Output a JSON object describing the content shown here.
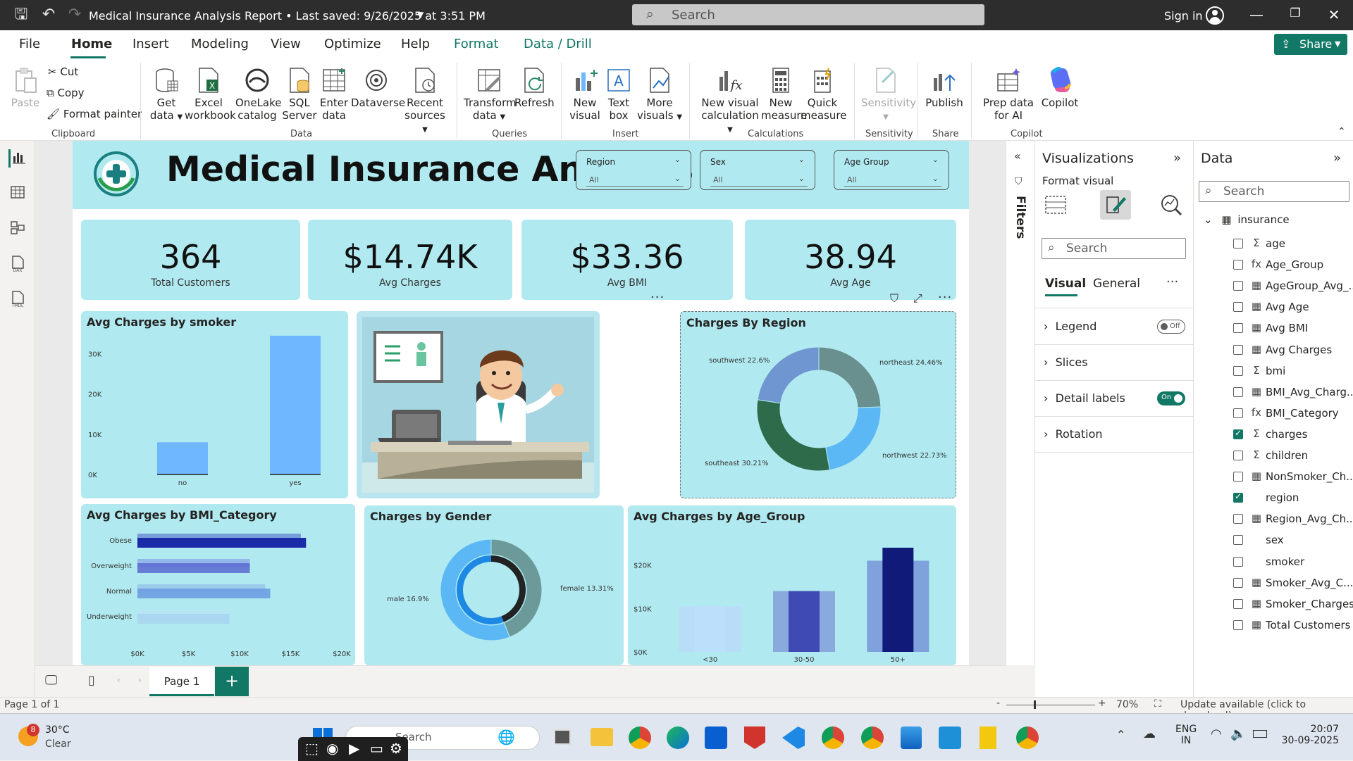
{
  "window": {
    "title": "Medical Insurance Analysis Report • Last saved: 9/26/2025 at 3:51 PM",
    "search_placeholder": "Search",
    "sign_in": "Sign in"
  },
  "menu": {
    "tabs": [
      "File",
      "Home",
      "Insert",
      "Modeling",
      "View",
      "Optimize",
      "Help",
      "Format",
      "Data / Drill"
    ],
    "share": "Share"
  },
  "ribbon": {
    "clipboard": {
      "paste": "Paste",
      "cut": "Cut",
      "copy": "Copy",
      "format_painter": "Format painter",
      "label": "Clipboard"
    },
    "data": {
      "get_data": "Get data",
      "excel": "Excel workbook",
      "onelake": "OneLake catalog",
      "sql": "SQL Server",
      "enter": "Enter data",
      "dataverse": "Dataverse",
      "recent": "Recent sources",
      "label": "Data"
    },
    "queries": {
      "transform": "Transform data",
      "refresh": "Refresh",
      "label": "Queries"
    },
    "insert": {
      "new_visual": "New visual",
      "text_box": "Text box",
      "more_visuals": "More visuals",
      "label": "Insert"
    },
    "calculations": {
      "new_visual_calc": "New visual calculation",
      "new_measure": "New measure",
      "quick_measure": "Quick measure",
      "label": "Calculations"
    },
    "sensitivity": {
      "btn": "Sensitivity",
      "label": "Sensitivity"
    },
    "share": {
      "publish": "Publish",
      "label": "Share"
    },
    "copilot": {
      "prep": "Prep data for AI",
      "copilot": "Copilot",
      "label": "Copilot"
    }
  },
  "report": {
    "title": "Medical Insurance Analysis",
    "slicers": [
      {
        "header": "Region",
        "value": "All"
      },
      {
        "header": "Sex",
        "value": "All"
      },
      {
        "header": "Age Group",
        "value": "All"
      }
    ],
    "kpis": [
      {
        "value": "364",
        "label": "Total Customers"
      },
      {
        "value": "$14.74K",
        "label": "Avg Charges"
      },
      {
        "value": "$33.36",
        "label": "Avg BMI"
      },
      {
        "value": "38.94",
        "label": "Avg Age"
      }
    ],
    "card_titles": {
      "smoker": "Avg Charges by smoker",
      "region": "Charges By Region",
      "bmi": "Avg Charges by BMI_Category",
      "gender": "Charges by Gender",
      "age": "Avg Charges by Age_Group"
    }
  },
  "chart_data": [
    {
      "type": "bar",
      "title": "Avg Charges by smoker",
      "categories": [
        "no",
        "yes"
      ],
      "values": [
        8000,
        34500
      ],
      "ylim": [
        0,
        35000
      ],
      "yticks": [
        "0K",
        "10K",
        "20K",
        "30K"
      ],
      "color": "#6fb8ff"
    },
    {
      "type": "pie",
      "title": "Charges By Region",
      "donut": true,
      "slices": [
        {
          "label": "northeast 24.46%",
          "value": 24.46,
          "color": "#6a8f8f"
        },
        {
          "label": "northwest 22.73%",
          "value": 22.73,
          "color": "#5bb8f5"
        },
        {
          "label": "southeast 30.21%",
          "value": 30.21,
          "color": "#2e6b4b"
        },
        {
          "label": "southwest 22.6%",
          "value": 22.6,
          "color": "#6f96d0"
        }
      ]
    },
    {
      "type": "bar",
      "orientation": "horizontal",
      "title": "Avg Charges by BMI_Category",
      "categories": [
        "Obese",
        "Overweight",
        "Normal",
        "Underweight"
      ],
      "series": [
        {
          "values": [
            16500,
            11000,
            13000,
            9000
          ]
        },
        {
          "values": [
            16000,
            11000,
            12500,
            9000
          ]
        }
      ],
      "xlim": [
        0,
        20000
      ],
      "xticks": [
        "$0K",
        "$5K",
        "$10K",
        "$15K",
        "$20K"
      ]
    },
    {
      "type": "pie",
      "title": "Charges by Gender",
      "donut": true,
      "slices": [
        {
          "label": "female 13.31%",
          "value": 13.31,
          "color": "#6c9a9a"
        },
        {
          "label": "male 16.9%",
          "value": 16.9,
          "color": "#5cb8f5"
        }
      ]
    },
    {
      "type": "bar",
      "title": "Avg Charges by Age_Group",
      "categories": [
        "<30",
        "30-50",
        "50+"
      ],
      "series": [
        {
          "values": [
            10500,
            14000,
            24000
          ]
        },
        {
          "values": [
            10500,
            14000,
            21000
          ]
        }
      ],
      "ylim": [
        0,
        24000
      ],
      "yticks": [
        "$0K",
        "$10K",
        "$20K"
      ]
    }
  ],
  "filters": {
    "label": "Filters"
  },
  "visualizations": {
    "header": "Visualizations",
    "sub": "Format visual",
    "search": "Search",
    "tabs": [
      "Visual",
      "General"
    ],
    "sections": [
      "Legend",
      "Slices",
      "Detail labels",
      "Rotation"
    ],
    "toggles": {
      "legend": "Off",
      "detail": "On"
    }
  },
  "data_pane": {
    "header": "Data",
    "search": "Search",
    "table": "insurance",
    "fields": [
      {
        "name": "age",
        "icon": "Σ",
        "checked": false
      },
      {
        "name": "Age_Group",
        "icon": "fx",
        "checked": false
      },
      {
        "name": "AgeGroup_Avg_...",
        "icon": "▦",
        "checked": false
      },
      {
        "name": "Avg Age",
        "icon": "▦",
        "checked": false
      },
      {
        "name": "Avg BMI",
        "icon": "▦",
        "checked": false
      },
      {
        "name": "Avg Charges",
        "icon": "▦",
        "checked": false
      },
      {
        "name": "bmi",
        "icon": "Σ",
        "checked": false
      },
      {
        "name": "BMI_Avg_Charg...",
        "icon": "▦",
        "checked": false
      },
      {
        "name": "BMI_Category",
        "icon": "fx",
        "checked": false
      },
      {
        "name": "charges",
        "icon": "Σ",
        "checked": true
      },
      {
        "name": "children",
        "icon": "Σ",
        "checked": false
      },
      {
        "name": "NonSmoker_Ch...",
        "icon": "▦",
        "checked": false
      },
      {
        "name": "region",
        "icon": "",
        "checked": true
      },
      {
        "name": "Region_Avg_Ch...",
        "icon": "▦",
        "checked": false
      },
      {
        "name": "sex",
        "icon": "",
        "checked": false
      },
      {
        "name": "smoker",
        "icon": "",
        "checked": false
      },
      {
        "name": "Smoker_Avg_C...",
        "icon": "▦",
        "checked": false
      },
      {
        "name": "Smoker_Charges",
        "icon": "▦",
        "checked": false
      },
      {
        "name": "Total Customers",
        "icon": "▦",
        "checked": false
      }
    ]
  },
  "pages": {
    "current": "Page 1"
  },
  "status": {
    "page_info": "Page 1 of 1",
    "zoom": "70%",
    "update": "Update available (click to download)"
  },
  "taskbar": {
    "weather_temp": "30°C",
    "weather_desc": "Clear",
    "weather_badge": "8",
    "search": "Search",
    "lang1": "ENG",
    "lang2": "IN",
    "time": "20:07",
    "date": "30-09-2025"
  }
}
